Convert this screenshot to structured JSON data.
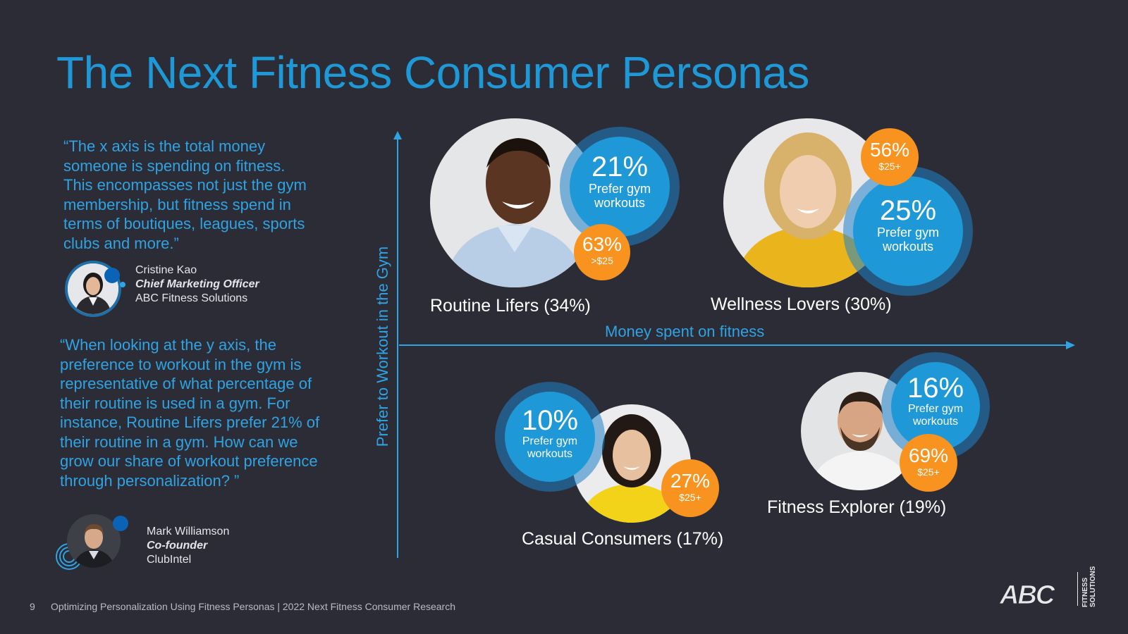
{
  "title": "The Next Fitness Consumer Personas",
  "quotes": [
    {
      "text": "“The x axis is the total money someone is spending on fitness. This encompasses not just the gym membership, but fitness spend in terms of boutiques, leagues, sports clubs and more.”",
      "author": {
        "name": "Cristine Kao",
        "role": "Chief Marketing Officer",
        "org": "ABC Fitness Solutions"
      }
    },
    {
      "text": "“When looking at the y axis, the preference to workout in the gym is representative of what percentage of their routine is used in a gym. For instance, Routine Lifers prefer 21% of their routine in a gym. How can we grow our share of workout preference through personalization? ”",
      "author": {
        "name": "Mark Williamson",
        "role": "Co-founder",
        "org": "ClubIntel"
      }
    }
  ],
  "axes": {
    "x_label": "Money spent on fitness",
    "y_label": "Prefer to Workout in the Gym"
  },
  "personas": [
    {
      "name": "Routine Lifers (34%)",
      "gym_pct": "21%",
      "gym_label": "Prefer gym workouts",
      "spend_pct": "63%",
      "spend_label": ">$25"
    },
    {
      "name": "Wellness Lovers (30%)",
      "gym_pct": "25%",
      "gym_label": "Prefer gym workouts",
      "spend_pct": "56%",
      "spend_label": "$25+"
    },
    {
      "name": "Casual Consumers (17%)",
      "gym_pct": "10%",
      "gym_label": "Prefer gym workouts",
      "spend_pct": "27%",
      "spend_label": "$25+"
    },
    {
      "name": "Fitness Explorer (19%)",
      "gym_pct": "16%",
      "gym_label": "Prefer gym workouts",
      "spend_pct": "69%",
      "spend_label": "$25+"
    }
  ],
  "footer": {
    "page": "9",
    "text": "Optimizing Personalization Using Fitness Personas |  2022 Next Fitness Consumer Research"
  },
  "logo": {
    "brand": "ABC",
    "tagline_1": "FITNESS",
    "tagline_2": "SOLUTIONS"
  },
  "colors": {
    "background": "#2b2c35",
    "accent_blue": "#1f98d7",
    "accent_orange": "#f7931e"
  }
}
